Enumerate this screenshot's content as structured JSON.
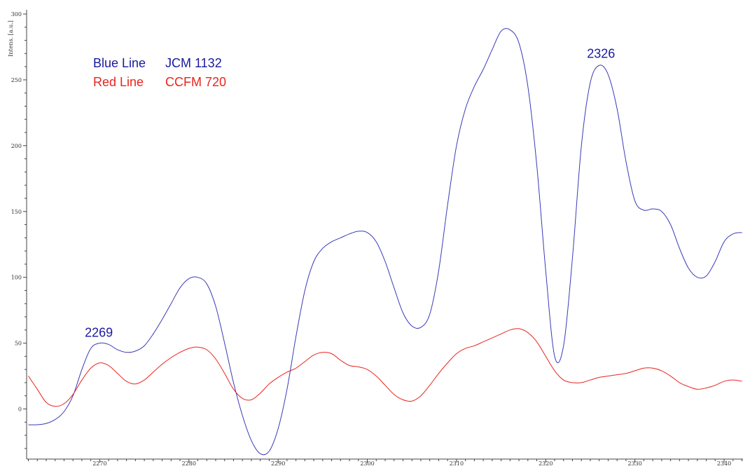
{
  "chart_data": {
    "type": "line",
    "ylabel": "Intens. [a.u.]",
    "xlim": [
      2262,
      2342
    ],
    "ylim": [
      -35,
      302
    ],
    "x_ticks": [
      2270,
      2280,
      2290,
      2300,
      2310,
      2320,
      2330,
      2340
    ],
    "y_ticks": [
      0,
      50,
      100,
      150,
      200,
      250,
      300
    ],
    "grid": false,
    "legend": [
      {
        "label": "Blue Line",
        "id": "JCM 1132",
        "color": "#1a1aa0"
      },
      {
        "label": "Red Line",
        "id": "CCFM 720",
        "color": "#e8251f"
      }
    ],
    "annotations": [
      {
        "text": "2269",
        "x": 2269.9,
        "y": 50
      },
      {
        "text": "2326",
        "x": 2326.2,
        "y": 262
      }
    ],
    "series": [
      {
        "color": "#3a3ab8",
        "points": [
          [
            2262,
            -12
          ],
          [
            2263,
            -12
          ],
          [
            2264,
            -11
          ],
          [
            2265,
            -8
          ],
          [
            2266,
            -2
          ],
          [
            2267,
            10
          ],
          [
            2268,
            30
          ],
          [
            2269,
            46
          ],
          [
            2270,
            50
          ],
          [
            2271,
            49
          ],
          [
            2272,
            45
          ],
          [
            2273,
            43
          ],
          [
            2274,
            44
          ],
          [
            2275,
            48
          ],
          [
            2276,
            57
          ],
          [
            2277,
            68
          ],
          [
            2278,
            80
          ],
          [
            2279,
            92
          ],
          [
            2280,
            99
          ],
          [
            2281,
            100
          ],
          [
            2282,
            95
          ],
          [
            2283,
            78
          ],
          [
            2284,
            50
          ],
          [
            2285,
            20
          ],
          [
            2286,
            -5
          ],
          [
            2287,
            -24
          ],
          [
            2288,
            -34
          ],
          [
            2289,
            -32
          ],
          [
            2290,
            -15
          ],
          [
            2291,
            15
          ],
          [
            2292,
            55
          ],
          [
            2293,
            90
          ],
          [
            2294,
            112
          ],
          [
            2295,
            122
          ],
          [
            2296,
            127
          ],
          [
            2297,
            130
          ],
          [
            2298,
            133
          ],
          [
            2299,
            135
          ],
          [
            2300,
            134
          ],
          [
            2301,
            127
          ],
          [
            2302,
            112
          ],
          [
            2303,
            92
          ],
          [
            2304,
            73
          ],
          [
            2305,
            63
          ],
          [
            2306,
            62
          ],
          [
            2307,
            72
          ],
          [
            2308,
            105
          ],
          [
            2309,
            155
          ],
          [
            2310,
            200
          ],
          [
            2311,
            228
          ],
          [
            2312,
            245
          ],
          [
            2313,
            258
          ],
          [
            2314,
            273
          ],
          [
            2315,
            287
          ],
          [
            2316,
            288
          ],
          [
            2317,
            278
          ],
          [
            2318,
            245
          ],
          [
            2319,
            185
          ],
          [
            2320,
            105
          ],
          [
            2321,
            40
          ],
          [
            2322,
            48
          ],
          [
            2323,
            115
          ],
          [
            2324,
            200
          ],
          [
            2325,
            248
          ],
          [
            2326,
            261
          ],
          [
            2327,
            254
          ],
          [
            2328,
            228
          ],
          [
            2329,
            188
          ],
          [
            2330,
            158
          ],
          [
            2331,
            151
          ],
          [
            2332,
            152
          ],
          [
            2333,
            150
          ],
          [
            2334,
            140
          ],
          [
            2335,
            122
          ],
          [
            2336,
            107
          ],
          [
            2337,
            100
          ],
          [
            2338,
            101
          ],
          [
            2339,
            112
          ],
          [
            2340,
            127
          ],
          [
            2341,
            133
          ],
          [
            2342,
            134
          ]
        ]
      },
      {
        "color": "#e8251f",
        "points": [
          [
            2262,
            25
          ],
          [
            2263,
            15
          ],
          [
            2264,
            5
          ],
          [
            2265,
            2
          ],
          [
            2266,
            4
          ],
          [
            2267,
            11
          ],
          [
            2268,
            22
          ],
          [
            2269,
            31
          ],
          [
            2270,
            35
          ],
          [
            2271,
            33
          ],
          [
            2272,
            27
          ],
          [
            2273,
            21
          ],
          [
            2274,
            19
          ],
          [
            2275,
            22
          ],
          [
            2276,
            28
          ],
          [
            2277,
            34
          ],
          [
            2278,
            39
          ],
          [
            2279,
            43
          ],
          [
            2280,
            46
          ],
          [
            2281,
            47
          ],
          [
            2282,
            45
          ],
          [
            2283,
            38
          ],
          [
            2284,
            27
          ],
          [
            2285,
            15
          ],
          [
            2286,
            8
          ],
          [
            2287,
            7
          ],
          [
            2288,
            12
          ],
          [
            2289,
            19
          ],
          [
            2290,
            24
          ],
          [
            2291,
            28
          ],
          [
            2292,
            31
          ],
          [
            2293,
            36
          ],
          [
            2294,
            41
          ],
          [
            2295,
            43
          ],
          [
            2296,
            42
          ],
          [
            2297,
            37
          ],
          [
            2298,
            33
          ],
          [
            2299,
            32
          ],
          [
            2300,
            30
          ],
          [
            2301,
            25
          ],
          [
            2302,
            18
          ],
          [
            2303,
            11
          ],
          [
            2304,
            7
          ],
          [
            2305,
            6
          ],
          [
            2306,
            10
          ],
          [
            2307,
            18
          ],
          [
            2308,
            27
          ],
          [
            2309,
            35
          ],
          [
            2310,
            42
          ],
          [
            2311,
            46
          ],
          [
            2312,
            48
          ],
          [
            2313,
            51
          ],
          [
            2314,
            54
          ],
          [
            2315,
            57
          ],
          [
            2316,
            60
          ],
          [
            2317,
            61
          ],
          [
            2318,
            58
          ],
          [
            2319,
            51
          ],
          [
            2320,
            40
          ],
          [
            2321,
            29
          ],
          [
            2322,
            22
          ],
          [
            2323,
            20
          ],
          [
            2324,
            20
          ],
          [
            2325,
            22
          ],
          [
            2326,
            24
          ],
          [
            2327,
            25
          ],
          [
            2328,
            26
          ],
          [
            2329,
            27
          ],
          [
            2330,
            29
          ],
          [
            2331,
            31
          ],
          [
            2332,
            31
          ],
          [
            2333,
            29
          ],
          [
            2334,
            25
          ],
          [
            2335,
            20
          ],
          [
            2336,
            17
          ],
          [
            2337,
            15
          ],
          [
            2338,
            16
          ],
          [
            2339,
            18
          ],
          [
            2340,
            21
          ],
          [
            2341,
            22
          ],
          [
            2342,
            21
          ]
        ]
      }
    ]
  }
}
